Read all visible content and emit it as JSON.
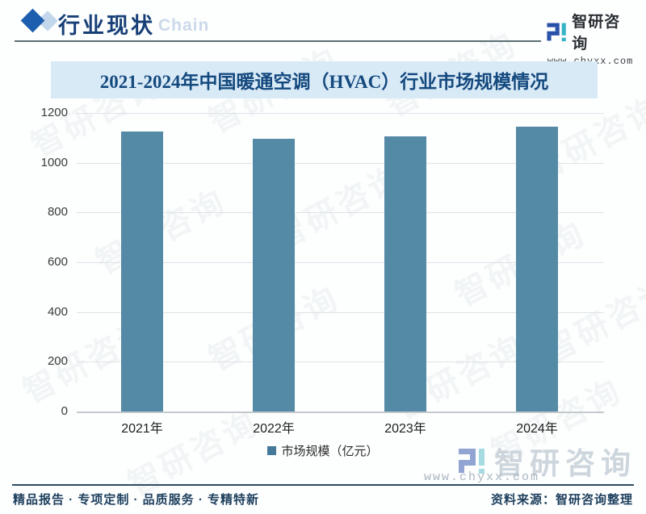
{
  "header": {
    "section_title": "行业现状",
    "watermark_word": "Chain",
    "brand": {
      "name": "智研咨询",
      "website": "www.chyxx.com"
    }
  },
  "banner": {
    "title": "2021-2024年中国暖通空调（HVAC）行业市场规模情况"
  },
  "chart_data": {
    "type": "bar",
    "title": "2021-2024年中国暖通空调（HVAC）行业市场规模情况",
    "categories": [
      "2021年",
      "2022年",
      "2023年",
      "2024年"
    ],
    "series": [
      {
        "name": "市场规模（亿元）",
        "values": [
          1125,
          1095,
          1105,
          1145
        ]
      }
    ],
    "ylabel": "",
    "xlabel": "",
    "ylim": [
      0,
      1200
    ],
    "yticks": [
      0,
      200,
      400,
      600,
      800,
      1000,
      1200
    ],
    "grid": true,
    "legend_position": "bottom",
    "bar_color": "#548aa6",
    "legend_marker_color": "#45799a"
  },
  "footer": {
    "tagline": "精品报告 · 专项定制 · 品质服务 · 专精特新",
    "source": "资料来源：智研咨询整理",
    "watermark_brand": "智研咨询"
  },
  "watermark": {
    "text": "智研咨询"
  },
  "colors": {
    "bar": "#548aa6",
    "banner_bg": "#d9eaf7",
    "banner_text": "#14497e",
    "header_title": "#173f77",
    "accent_blue": "#1d5fae",
    "teal": "#35b4c5",
    "footer_text": "#1d3f5e",
    "gridline": "#dfe3e8"
  }
}
